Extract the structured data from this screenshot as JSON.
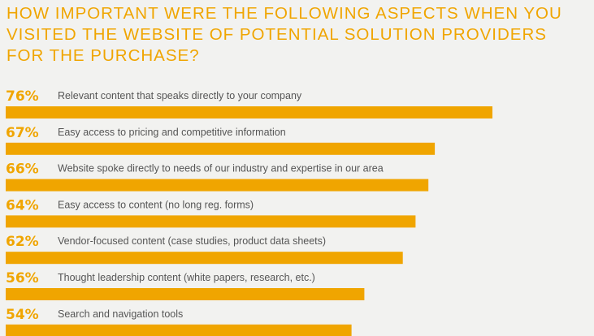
{
  "chart_data": {
    "type": "bar",
    "orientation": "horizontal",
    "title": "HOW IMPORTANT WERE THE FOLLOWING ASPECTS WHEN YOU VISITED THE WEBSITE OF POTENTIAL SOLUTION PROVIDERS FOR THE PURCHASE?",
    "categories": [
      "Relevant content that speaks directly to your company",
      "Easy access to pricing and competitive information",
      "Website spoke directly to needs of our industry and expertise in our area",
      "Easy access to content (no long reg. forms)",
      "Vendor-focused content (case studies, product data sheets)",
      "Thought leadership content (white papers, research, etc.)",
      "Search and navigation tools"
    ],
    "values": [
      76,
      67,
      66,
      64,
      62,
      56,
      54
    ],
    "value_labels": [
      "76%",
      "67%",
      "66%",
      "64%",
      "62%",
      "56%",
      "54%"
    ],
    "unit": "%",
    "xlim": [
      0,
      100
    ],
    "grid": false,
    "legend": "none"
  },
  "colors": {
    "accent": "#f0a500",
    "label_text": "#555555",
    "background": "#f2f2f0"
  }
}
